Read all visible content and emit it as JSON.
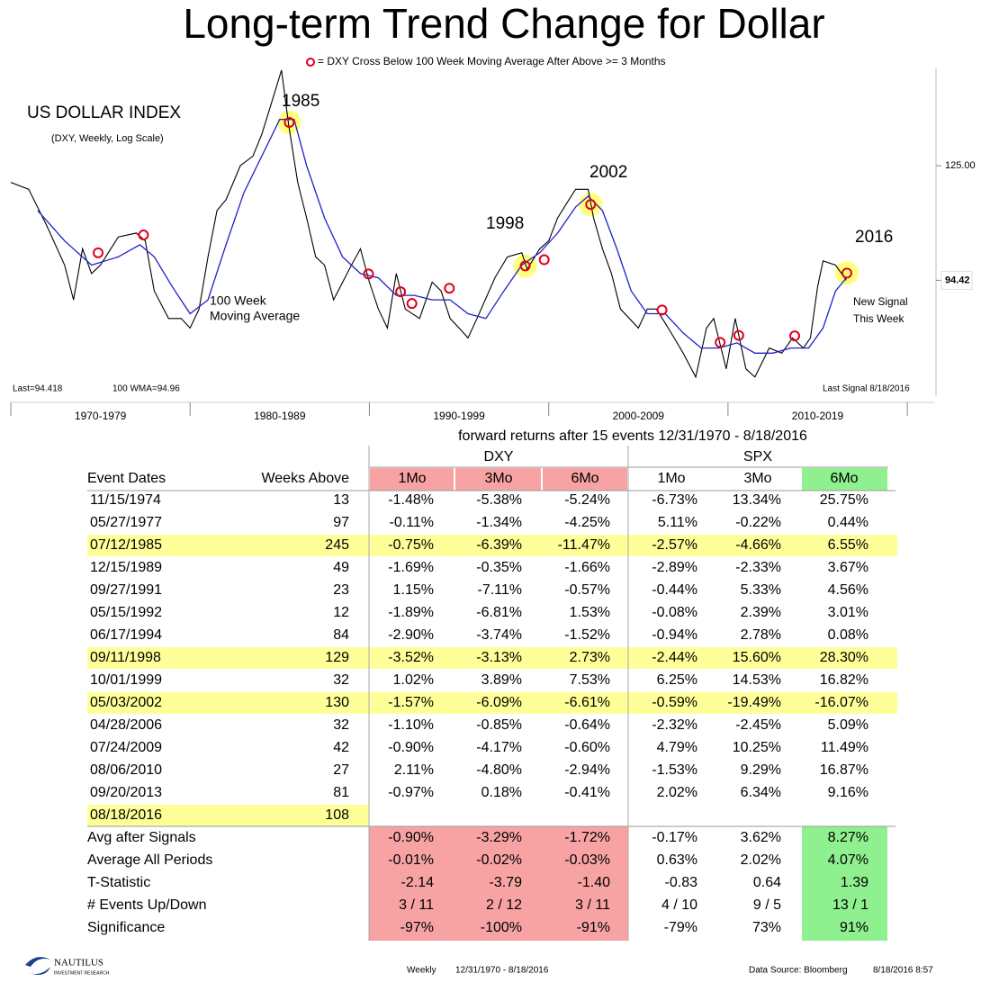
{
  "chart_data": {
    "type": "line",
    "title": "Long-term Trend Change for Dollar",
    "legend_text": "= DXY  Cross Below 100 Week Moving Average After Above >= 3 Months",
    "label": "US DOLLAR INDEX",
    "sublabel": "(DXY, Weekly, Log Scale)",
    "log_scale": true,
    "xlim": [
      1970,
      2021.5
    ],
    "ylim": [
      73.5,
      159
    ],
    "yticks": [
      {
        "value": 125,
        "label": "125.00"
      },
      94.42
    ],
    "xticks": [
      {
        "value": 1975,
        "label": "1970-1979"
      },
      {
        "value": 1985,
        "label": "1980-1989"
      },
      {
        "value": 1995,
        "label": "1990-1999"
      },
      {
        "value": 2005,
        "label": "2000-2009"
      },
      {
        "value": 2015,
        "label": "2010-2019"
      }
    ],
    "series": [
      {
        "color": "#000000",
        "x": [
          1970,
          1971,
          1972,
          1973,
          1973.5,
          1974,
          1974.5,
          1975,
          1976,
          1977,
          1977.5,
          1978,
          1978.8,
          1979.5,
          1980,
          1980.5,
          1981,
          1981.5,
          1982,
          1982.8,
          1983.5,
          1984,
          1984.5,
          1985.1,
          1985.5,
          1986,
          1986.5,
          1987,
          1987.5,
          1988,
          1989,
          1989.5,
          1990,
          1990.5,
          1991,
          1991.5,
          1992,
          1992.8,
          1993.5,
          1994,
          1994.5,
          1995,
          1995.5,
          1996,
          1997,
          1997.7,
          1998.5,
          1998.8,
          1999.5,
          2000,
          2000.5,
          2001,
          2001.5,
          2002.2,
          2002.5,
          2003,
          2003.5,
          2004,
          2005,
          2005.5,
          2006,
          2006.5,
          2007,
          2007.5,
          2008.2,
          2008.8,
          2009.2,
          2009.9,
          2010.4,
          2011,
          2011.5,
          2012.3,
          2013,
          2013.6,
          2014.2,
          2014.6,
          2015,
          2015.3,
          2016,
          2016.6
        ],
        "values": [
          120,
          118,
          108,
          98,
          90,
          102,
          96,
          98,
          105,
          106,
          104,
          92,
          86,
          86,
          84,
          88,
          100,
          112,
          115,
          125,
          128,
          135,
          145,
          158,
          138,
          120,
          110,
          100,
          98,
          90,
          98,
          102,
          94,
          88,
          84,
          96,
          88,
          86,
          94,
          92,
          86,
          84,
          82,
          86,
          95,
          100,
          101,
          97,
          102,
          104,
          110,
          114,
          118,
          118,
          110,
          102,
          96,
          88,
          84,
          88,
          88,
          85,
          82,
          79,
          74.5,
          84,
          86,
          76,
          86,
          76,
          74.5,
          80,
          79,
          82,
          80,
          82,
          93,
          99,
          98,
          94.42
        ]
      },
      {
        "color": "#1f1fcc",
        "x": [
          1971.5,
          1973,
          1974.5,
          1976,
          1977.2,
          1978,
          1979,
          1980,
          1981,
          1982,
          1983,
          1984,
          1985,
          1985.8,
          1986.5,
          1987.5,
          1988.5,
          1989.5,
          1990.5,
          1991.5,
          1992.5,
          1993.5,
          1994.5,
          1995.5,
          1996.5,
          1997.5,
          1998.5,
          1999.5,
          2000.5,
          2001.5,
          2002.2,
          2003,
          2003.8,
          2004.6,
          2005.5,
          2006.5,
          2007.5,
          2008.5,
          2009.5,
          2010.5,
          2011.5,
          2012.5,
          2013.5,
          2014.5,
          2015.3,
          2016,
          2016.6
        ],
        "values": [
          112,
          104,
          98,
          100,
          103,
          100,
          93,
          87,
          90,
          103,
          117,
          128,
          140,
          140,
          125,
          110,
          100,
          96,
          95,
          91,
          91,
          90,
          90,
          87,
          86,
          92,
          98,
          101,
          106,
          113,
          116,
          112,
          102,
          92,
          87,
          87,
          83,
          80,
          80,
          81,
          79,
          79,
          80,
          80,
          84,
          92,
          94.96
        ]
      }
    ],
    "signals": {
      "color": "#e0001b",
      "highlight_color": "#ffff66",
      "x": [
        1974.87,
        1977.4,
        1985.53,
        1989.95,
        1991.74,
        1992.37,
        1994.46,
        1998.69,
        1999.75,
        2002.34,
        2006.32,
        2009.56,
        2010.6,
        2013.72,
        2016.63
      ],
      "values": [
        101,
        105.5,
        139,
        95.9,
        91.8,
        89.2,
        92.6,
        97.8,
        99.3,
        113.7,
        87.8,
        81.1,
        82.5,
        82.4,
        96.1
      ],
      "highlighted": [
        2,
        7,
        9,
        14
      ]
    },
    "annotations": {
      "y1985": "1985",
      "y1998": "1998",
      "y2002": "2002",
      "y2016": "2016",
      "ma1": "100 Week",
      "ma2": "Moving Average",
      "new1": "New Signal",
      "new2": "This Week",
      "last": "Last=94.418",
      "wma": "100 WMA=94.96",
      "last_signal": "Last Signal 8/18/2016"
    }
  },
  "table": {
    "subtitle": "forward returns after 15 events 12/31/1970 - 8/18/2016",
    "groups": [
      "DXY",
      "SPX"
    ],
    "columns": [
      "Event Dates",
      "Weeks Above",
      "1Mo",
      "3Mo",
      "6Mo",
      "1Mo",
      "3Mo",
      "6Mo"
    ],
    "rows": [
      [
        "11/15/1974",
        "13",
        "-1.48%",
        "-5.38%",
        "-5.24%",
        "-6.73%",
        "13.34%",
        "25.75%"
      ],
      [
        "05/27/1977",
        "97",
        "-0.11%",
        "-1.34%",
        "-4.25%",
        "5.11%",
        "-0.22%",
        "0.44%"
      ],
      [
        "07/12/1985",
        "245",
        "-0.75%",
        "-6.39%",
        "-11.47%",
        "-2.57%",
        "-4.66%",
        "6.55%"
      ],
      [
        "12/15/1989",
        "49",
        "-1.69%",
        "-0.35%",
        "-1.66%",
        "-2.89%",
        "-2.33%",
        "3.67%"
      ],
      [
        "09/27/1991",
        "23",
        "1.15%",
        "-7.11%",
        "-0.57%",
        "-0.44%",
        "5.33%",
        "4.56%"
      ],
      [
        "05/15/1992",
        "12",
        "-1.89%",
        "-6.81%",
        "1.53%",
        "-0.08%",
        "2.39%",
        "3.01%"
      ],
      [
        "06/17/1994",
        "84",
        "-2.90%",
        "-3.74%",
        "-1.52%",
        "-0.94%",
        "2.78%",
        "0.08%"
      ],
      [
        "09/11/1998",
        "129",
        "-3.52%",
        "-3.13%",
        "2.73%",
        "-2.44%",
        "15.60%",
        "28.30%"
      ],
      [
        "10/01/1999",
        "32",
        "1.02%",
        "3.89%",
        "7.53%",
        "6.25%",
        "14.53%",
        "16.82%"
      ],
      [
        "05/03/2002",
        "130",
        "-1.57%",
        "-6.09%",
        "-6.61%",
        "-0.59%",
        "-19.49%",
        "-16.07%"
      ],
      [
        "04/28/2006",
        "32",
        "-1.10%",
        "-0.85%",
        "-0.64%",
        "-2.32%",
        "-2.45%",
        "5.09%"
      ],
      [
        "07/24/2009",
        "42",
        "-0.90%",
        "-4.17%",
        "-0.60%",
        "4.79%",
        "10.25%",
        "11.49%"
      ],
      [
        "08/06/2010",
        "27",
        "2.11%",
        "-4.80%",
        "-2.94%",
        "-1.53%",
        "9.29%",
        "16.87%"
      ],
      [
        "09/20/2013",
        "81",
        "-0.97%",
        "0.18%",
        "-0.41%",
        "2.02%",
        "6.34%",
        "9.16%"
      ],
      [
        "08/18/2016",
        "108"
      ]
    ],
    "highlight_rows": [
      2,
      7,
      9,
      14
    ],
    "summary": [
      [
        "Avg after Signals",
        "-0.90%",
        "-3.29%",
        "-1.72%",
        "-0.17%",
        "3.62%",
        "8.27%"
      ],
      [
        "Average All Periods",
        "-0.01%",
        "-0.02%",
        "-0.03%",
        "0.63%",
        "2.02%",
        "4.07%"
      ],
      [
        "T-Statistic",
        "-2.14",
        "-3.79",
        "-1.40",
        "-0.83",
        "0.64",
        "1.39"
      ],
      [
        "# Events Up/Down",
        "3 / 11",
        "2 / 12",
        "3 / 11",
        "4 / 10",
        "9 / 5",
        "13 / 1"
      ],
      [
        "Significance",
        "-97%",
        "-100%",
        "-91%",
        "-79%",
        "73%",
        "91%"
      ]
    ]
  },
  "footer": {
    "logo": "NAUTILUS",
    "logo_sub": "INVESTMENT RESEARCH",
    "freq": "Weekly",
    "range": "12/31/1970 - 8/18/2016",
    "source": "Data Source: Bloomberg",
    "stamp": "8/18/2016 8:57"
  }
}
